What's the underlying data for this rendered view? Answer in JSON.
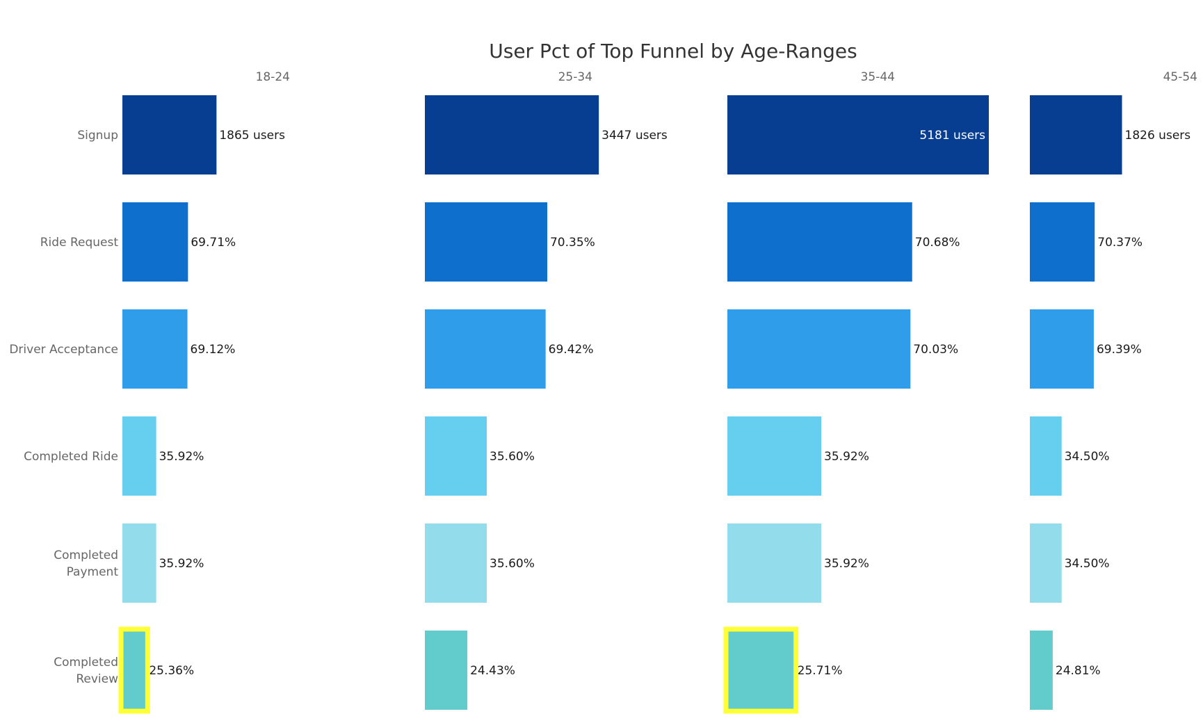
{
  "chart_data": {
    "type": "bar",
    "title": "User Pct of Top Funnel by Age-Ranges",
    "panels": [
      "18-24",
      "25-34",
      "35-44",
      "45-54"
    ],
    "stages": [
      {
        "label": [
          "Signup"
        ],
        "color": "#073e91"
      },
      {
        "label": [
          "Ride Request"
        ],
        "color": "#0e6fcd"
      },
      {
        "label": [
          "Driver Acceptance"
        ],
        "color": "#2f9dea"
      },
      {
        "label": [
          "Completed Ride"
        ],
        "color": "#66ceef"
      },
      {
        "label": [
          "Completed",
          "Payment"
        ],
        "color": "#92dceb"
      },
      {
        "label": [
          "Completed",
          "Review"
        ],
        "color": "#62cbcb"
      }
    ],
    "series": [
      {
        "panel": "18-24",
        "values": [
          1865,
          1300,
          1289,
          670,
          670,
          473
        ],
        "labels": [
          "1865 users",
          "69.71%",
          "69.12%",
          "35.92%",
          "35.92%",
          "25.36%"
        ]
      },
      {
        "panel": "25-34",
        "values": [
          3447,
          2425,
          2393,
          1227,
          1227,
          842
        ],
        "labels": [
          "3447 users",
          "70.35%",
          "69.42%",
          "35.60%",
          "35.60%",
          "24.43%"
        ]
      },
      {
        "panel": "35-44",
        "values": [
          5181,
          3662,
          3628,
          1861,
          1861,
          1332
        ],
        "labels": [
          "5181 users",
          "70.68%",
          "70.03%",
          "35.92%",
          "35.92%",
          "25.71%"
        ]
      },
      {
        "panel": "45-54",
        "values": [
          1826,
          1285,
          1267,
          630,
          630,
          453
        ],
        "labels": [
          "1826 users",
          "70.37%",
          "69.39%",
          "34.50%",
          "34.50%",
          "24.81%"
        ]
      }
    ],
    "highlighted": [
      {
        "panel": "18-24",
        "stage": 5
      },
      {
        "panel": "35-44",
        "stage": 5
      }
    ],
    "highlight_color": "#ffff33",
    "xlim": [
      0,
      5181
    ]
  }
}
